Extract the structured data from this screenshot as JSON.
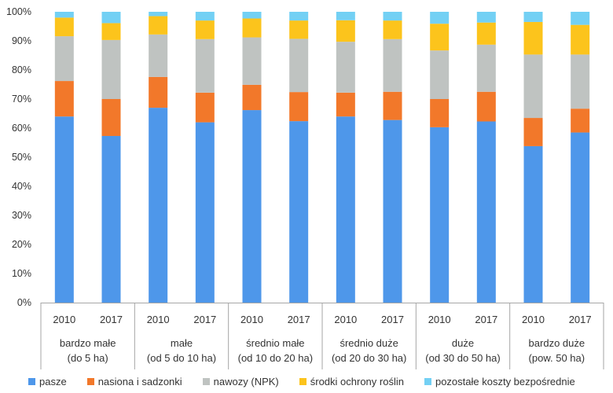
{
  "chart_data": {
    "type": "bar",
    "stacked": true,
    "normalized": true,
    "title": "",
    "xlabel": "",
    "ylabel": "",
    "ylim": [
      0,
      100
    ],
    "y_ticks": [
      "0%",
      "10%",
      "20%",
      "30%",
      "40%",
      "50%",
      "60%",
      "70%",
      "80%",
      "90%",
      "100%"
    ],
    "grid": false,
    "legend_position": "bottom",
    "groups": [
      {
        "label_line1": "bardzo małe",
        "label_line2": "(do 5 ha)"
      },
      {
        "label_line1": "małe",
        "label_line2": "(od 5 do 10 ha)"
      },
      {
        "label_line1": "średnio małe",
        "label_line2": "(od 10 do 20 ha)"
      },
      {
        "label_line1": "średnio duże",
        "label_line2": "(od 20 do 30 ha)"
      },
      {
        "label_line1": "duże",
        "label_line2": "(od 30 do 50 ha)"
      },
      {
        "label_line1": "bardzo duże",
        "label_line2": "(pow. 50 ha)"
      }
    ],
    "categories": [
      "2010",
      "2017",
      "2010",
      "2017",
      "2010",
      "2017",
      "2010",
      "2017",
      "2010",
      "2017",
      "2010",
      "2017"
    ],
    "series": [
      {
        "name": "pasze",
        "color": "#4E97EA",
        "values": [
          64,
          57.3,
          67,
          62,
          66.2,
          62.4,
          64,
          62.8,
          60.3,
          62.3,
          53.8,
          58.5
        ]
      },
      {
        "name": "nasiona i sadzonki",
        "color": "#F2782A",
        "values": [
          12.2,
          12.7,
          10.6,
          10.2,
          8.7,
          10,
          8.2,
          9.7,
          9.7,
          10.2,
          9.7,
          8.2
        ]
      },
      {
        "name": "nawozy (NPK)",
        "color": "#BFC3C1",
        "values": [
          15.4,
          20.3,
          14.6,
          18.4,
          16.3,
          18.3,
          17.5,
          18.1,
          16.7,
          16.2,
          21.8,
          18.6
        ]
      },
      {
        "name": "środki ochrony roślin",
        "color": "#FCC41C",
        "values": [
          6.4,
          5.8,
          6.3,
          6.4,
          6.5,
          6.3,
          7.4,
          6.4,
          9.2,
          7.6,
          11.2,
          10.2
        ]
      },
      {
        "name": "pozostałe koszty bezpośrednie",
        "color": "#73D0F4",
        "values": [
          2,
          3.9,
          1.5,
          3,
          2.3,
          3,
          2.9,
          3,
          4.1,
          3.7,
          3.5,
          4.5
        ]
      }
    ]
  }
}
